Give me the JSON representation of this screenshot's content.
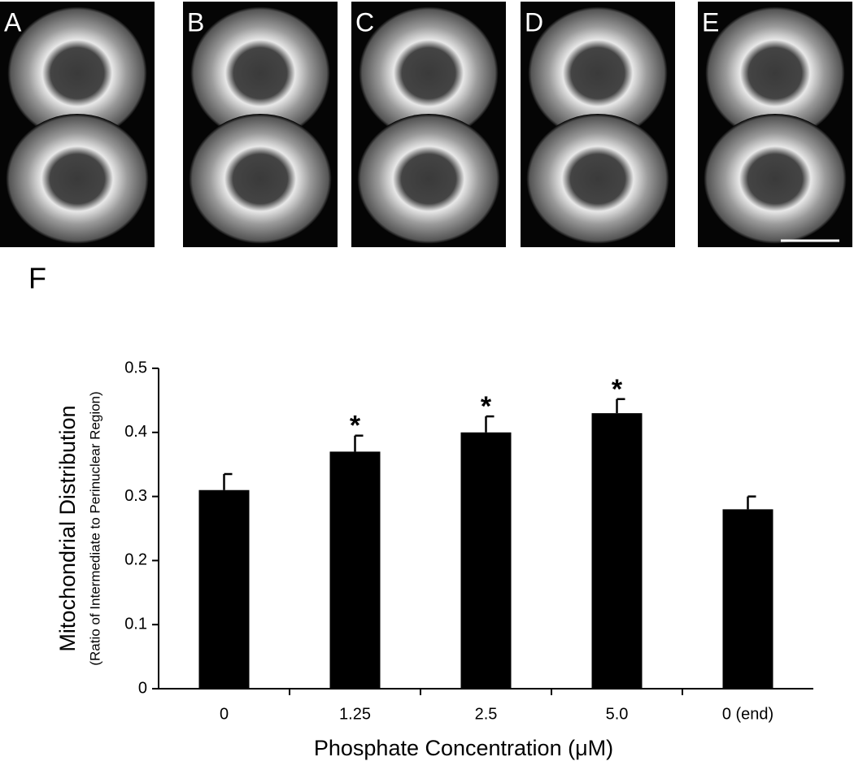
{
  "panels": [
    {
      "label": "A"
    },
    {
      "label": "B"
    },
    {
      "label": "C"
    },
    {
      "label": "D"
    },
    {
      "label": "E"
    }
  ],
  "chart_data": {
    "type": "bar",
    "panel_label": "F",
    "y_label": "Mitochondrial Distribution",
    "y_sublabel": "(Ratio of Intermediate to Perinuclear Region)",
    "x_label": "Phosphate Concentration (μM)",
    "categories": [
      "0",
      "1.25",
      "2.5",
      "5.0",
      "0 (end)"
    ],
    "values": [
      0.31,
      0.37,
      0.4,
      0.43,
      0.28
    ],
    "errors": [
      0.025,
      0.025,
      0.025,
      0.022,
      0.02
    ],
    "significance": [
      null,
      "*",
      "*",
      "*",
      null
    ],
    "color": "#000000",
    "ylim": [
      0,
      0.5
    ],
    "yticks": [
      0,
      0.1,
      0.2,
      0.3,
      0.4,
      0.5
    ]
  }
}
